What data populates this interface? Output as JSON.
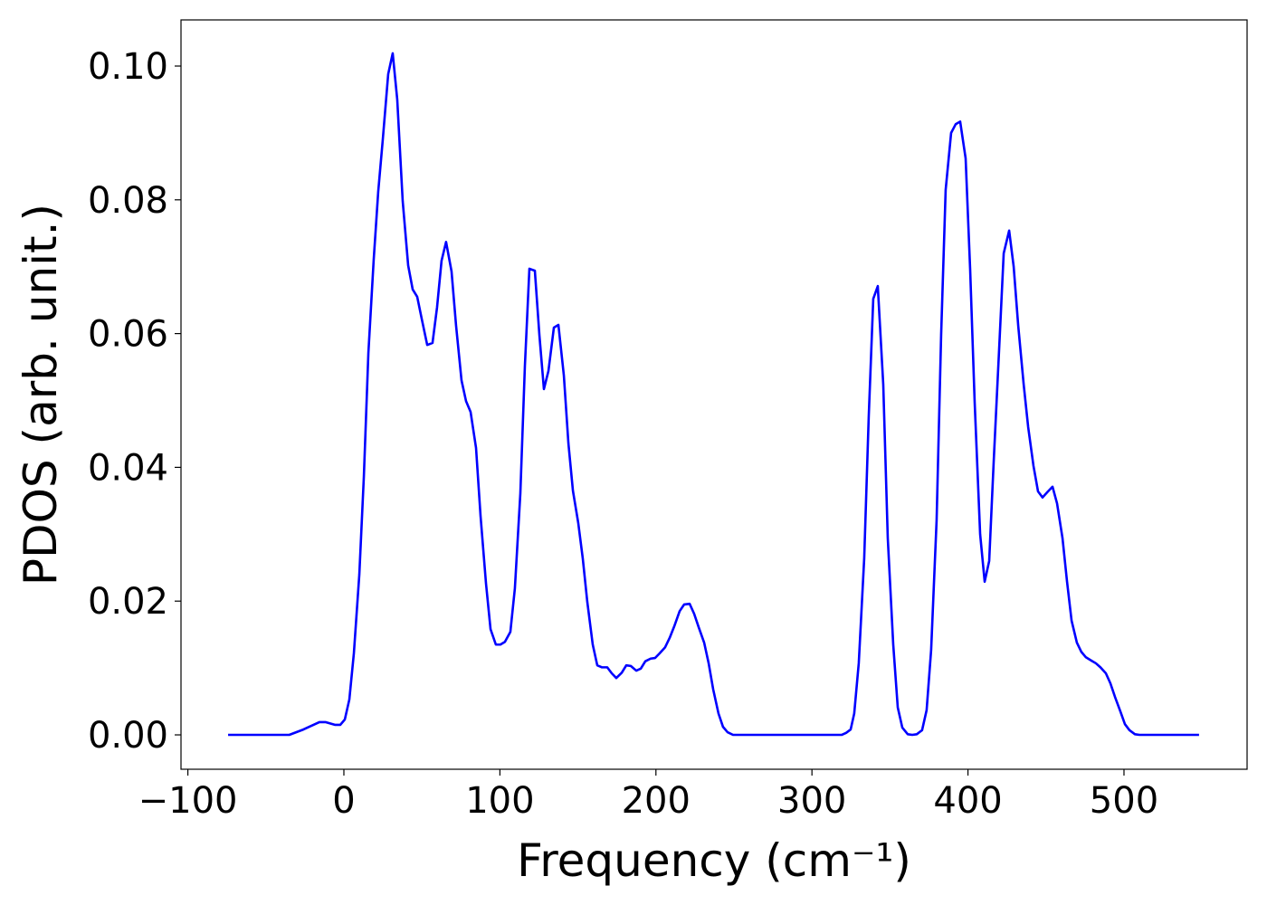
{
  "chart_data": {
    "type": "line",
    "xlabel": "Frequency (cm⁻¹)",
    "ylabel": "PDOS (arb. unit.)",
    "xlim": [
      -104.4,
      578.9
    ],
    "ylim": [
      -0.00514,
      0.1069
    ],
    "xticks": [
      {
        "value": -100,
        "label": "−100"
      },
      0,
      100,
      200,
      300,
      400,
      500
    ],
    "yticks": [
      {
        "value": 0,
        "label": "0.00"
      },
      {
        "value": 0.02,
        "label": "0.02"
      },
      {
        "value": 0.04,
        "label": "0.04"
      },
      {
        "value": 0.06,
        "label": "0.06"
      },
      {
        "value": 0.08,
        "label": "0.08"
      },
      {
        "value": 0.1,
        "label": "0.10"
      }
    ],
    "grid": false,
    "series": [
      {
        "color": "#0000ff",
        "x": [
          -74.2,
          -35,
          -26,
          -15.7,
          -11.6,
          -5.8,
          -2.3,
          0.6,
          3.5,
          6.4,
          9.9,
          12.8,
          15.7,
          19.1,
          22,
          24.9,
          28.4,
          31.3,
          34.2,
          37.7,
          41.2,
          44.1,
          47,
          49.9,
          53.4,
          56.8,
          59.7,
          62.6,
          65.5,
          69,
          71.9,
          75.4,
          78.3,
          81.2,
          84.7,
          87.6,
          91.1,
          94,
          97.4,
          100.3,
          103.2,
          106.7,
          109.6,
          113.1,
          116,
          118.9,
          122.4,
          125.3,
          128.2,
          131.1,
          134.6,
          137.5,
          141,
          143.9,
          146.8,
          150.2,
          153.1,
          156,
          159.5,
          162.4,
          165.3,
          168.8,
          171.7,
          174.6,
          178.1,
          181,
          183.9,
          187.4,
          190.3,
          193.2,
          196.6,
          199.5,
          202.4,
          205.9,
          208.8,
          211.7,
          215.2,
          218.1,
          221.6,
          224.5,
          227.4,
          230.9,
          233.8,
          236.7,
          240.1,
          243,
          245.9,
          249.4,
          319,
          321.9,
          324.8,
          327.1,
          330,
          333.5,
          336.4,
          339.3,
          342.2,
          345.7,
          348.6,
          352.1,
          355,
          357.9,
          361.4,
          364.3,
          367.2,
          370.6,
          373.5,
          376.4,
          379.9,
          382.8,
          385.7,
          389.2,
          392.1,
          395,
          398.5,
          401.4,
          404.3,
          407.8,
          410.7,
          413.6,
          416.5,
          420,
          422.9,
          426.4,
          429.3,
          432.2,
          435.7,
          438.6,
          442,
          444.9,
          447.8,
          451.3,
          454.2,
          457.1,
          460.6,
          463.5,
          466.4,
          469.8,
          472.7,
          475.6,
          479.1,
          482,
          484.9,
          488.4,
          491.3,
          494.2,
          497.7,
          500.6,
          503.5,
          507,
          509.9,
          548.1
        ],
        "values": [
          0,
          0,
          0.0008,
          0.0019,
          0.0019,
          0.0015,
          0.0015,
          0.0023,
          0.0053,
          0.0122,
          0.024,
          0.0386,
          0.0571,
          0.071,
          0.0812,
          0.0889,
          0.0988,
          0.1019,
          0.095,
          0.0798,
          0.0702,
          0.0666,
          0.0655,
          0.0622,
          0.0583,
          0.0586,
          0.0639,
          0.0709,
          0.0737,
          0.0693,
          0.0612,
          0.053,
          0.0499,
          0.0483,
          0.0429,
          0.0327,
          0.0226,
          0.0158,
          0.0135,
          0.0135,
          0.0139,
          0.0154,
          0.0219,
          0.0361,
          0.0551,
          0.0697,
          0.0694,
          0.0598,
          0.0517,
          0.0544,
          0.0609,
          0.0613,
          0.0537,
          0.0436,
          0.0365,
          0.0317,
          0.0264,
          0.0199,
          0.0135,
          0.0104,
          0.0101,
          0.0101,
          0.0092,
          0.0085,
          0.0093,
          0.0104,
          0.0103,
          0.0096,
          0.0099,
          0.011,
          0.0114,
          0.0115,
          0.0122,
          0.0131,
          0.0145,
          0.0162,
          0.0185,
          0.0195,
          0.0196,
          0.0181,
          0.0161,
          0.0138,
          0.0107,
          0.0068,
          0.0032,
          0.0012,
          0.0004,
          0,
          0,
          0.0003,
          0.0008,
          0.0032,
          0.0107,
          0.0264,
          0.0476,
          0.0652,
          0.0671,
          0.0524,
          0.0294,
          0.0135,
          0.0041,
          0.0011,
          0.0001,
          0,
          0.0001,
          0.0007,
          0.0037,
          0.0127,
          0.0321,
          0.0598,
          0.0815,
          0.09,
          0.0913,
          0.0917,
          0.0862,
          0.0696,
          0.0497,
          0.03,
          0.0229,
          0.026,
          0.0409,
          0.0578,
          0.072,
          0.0754,
          0.07,
          0.0612,
          0.0524,
          0.046,
          0.0402,
          0.0364,
          0.0355,
          0.0364,
          0.0371,
          0.0346,
          0.0294,
          0.0229,
          0.0171,
          0.0138,
          0.0124,
          0.0116,
          0.0111,
          0.0107,
          0.0101,
          0.0092,
          0.0077,
          0.0057,
          0.0035,
          0.0016,
          0.0007,
          0.0001,
          0,
          0
        ]
      }
    ]
  }
}
